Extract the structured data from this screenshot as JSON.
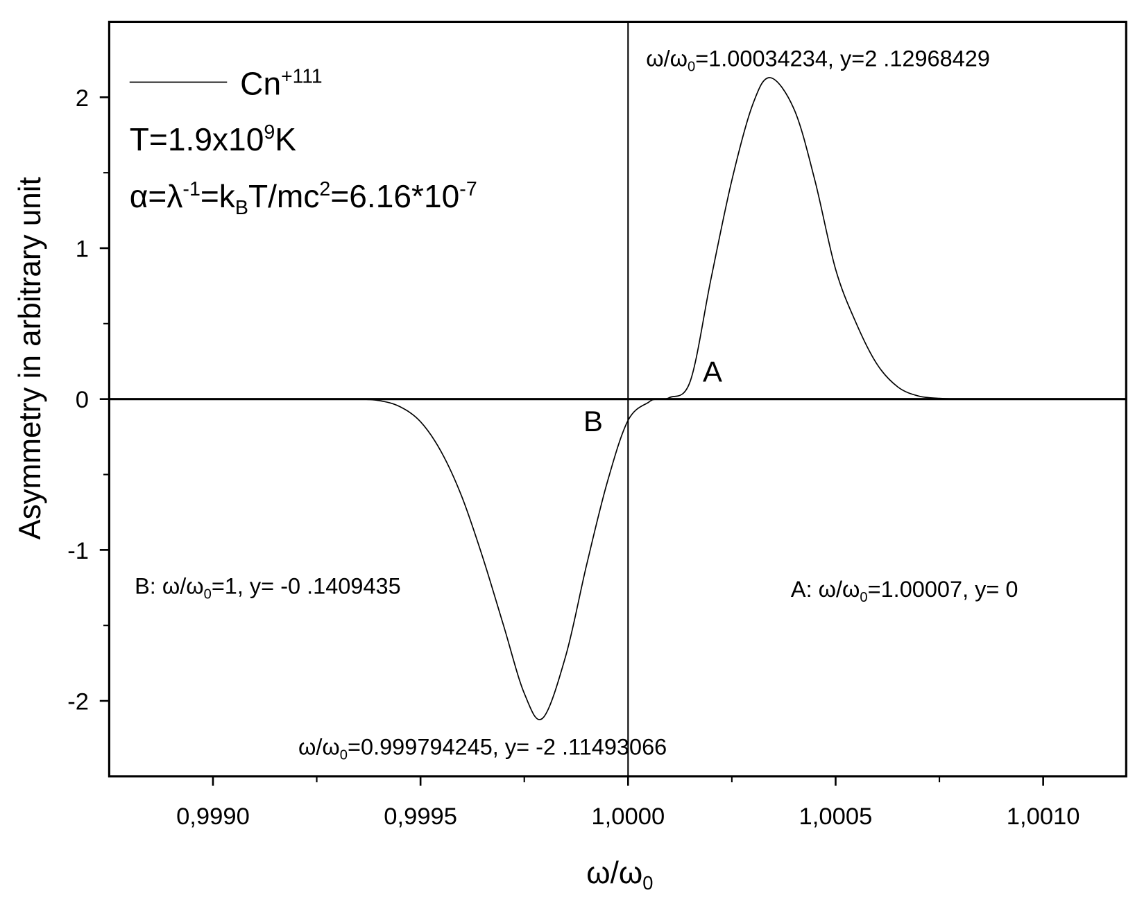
{
  "chart_data": {
    "type": "line",
    "x_label": {
      "parts": [
        {
          "text": "ω/ω"
        },
        {
          "text": "0",
          "shift": "sub"
        }
      ]
    },
    "y_label": "Asymmetry in arbitrary unit",
    "xlim": [
      0.99875,
      1.0012
    ],
    "ylim": [
      -2.5,
      2.5
    ],
    "xticks": [
      {
        "value": 0.999,
        "label": "0,9990"
      },
      {
        "value": 0.9995,
        "label": "0,9995"
      },
      {
        "value": 1,
        "label": "1,0000"
      },
      {
        "value": 1.0005,
        "label": "1,0005"
      },
      {
        "value": 1.001,
        "label": "1,0010"
      }
    ],
    "xminorticks": [
      0.99925,
      0.99975,
      1.00025,
      1.00075
    ],
    "yticks": [
      -2,
      -1,
      0,
      1,
      2
    ],
    "yminorticks": [
      -1.5,
      -0.5,
      0.5,
      1.5
    ],
    "hline": 0,
    "vline": 1,
    "x": [
      0.99935,
      0.9994,
      0.99945,
      0.9995,
      0.99955,
      0.9996,
      0.99965,
      0.9997,
      0.99975,
      0.999794245,
      0.99985,
      0.9999,
      0.99995,
      1,
      1.00005,
      1.00007,
      1.0001,
      1.00015,
      1.0002,
      1.00025,
      1.0003,
      1.00034234,
      1.0004,
      1.00045,
      1.0005,
      1.00055,
      1.0006,
      1.00065,
      1.0007,
      1.00075,
      1.0008
    ],
    "series": [
      {
        "name": "Cn",
        "name_sup": "+111",
        "color": "#000000",
        "values": [
          0,
          -0.01,
          -0.05,
          -0.15,
          -0.35,
          -0.65,
          -1.05,
          -1.5,
          -1.95,
          -2.11493066,
          -1.7,
          -1.1,
          -0.55,
          -0.1409435,
          -0.02,
          0,
          0.01,
          0.12,
          0.8,
          1.45,
          1.95,
          2.12968429,
          1.92,
          1.45,
          0.86,
          0.5,
          0.23,
          0.08,
          0.02,
          0.005,
          0
        ]
      }
    ],
    "annotations": [
      {
        "parts": [
          {
            "text": "T=1.9x10"
          },
          {
            "text": "9",
            "shift": "sup"
          },
          {
            "text": "K"
          }
        ]
      },
      {
        "parts": [
          {
            "text": "α=λ"
          },
          {
            "text": "-1",
            "shift": "sup"
          },
          {
            "text": "=k"
          },
          {
            "text": "B",
            "shift": "sub"
          },
          {
            "text": "T/mc"
          },
          {
            "text": "2",
            "shift": "sup"
          },
          {
            "text": "=6.16*10"
          },
          {
            "text": "-7",
            "shift": "sup"
          }
        ]
      },
      {
        "parts": [
          {
            "text": "ω/ω"
          },
          {
            "text": "0",
            "shift": "sub"
          },
          {
            "text": "=1.00034234, y=2 .12968429"
          }
        ]
      },
      {
        "parts": [
          {
            "text": "B: ω/ω"
          },
          {
            "text": "0",
            "shift": "sub"
          },
          {
            "text": "=1,  y= -0 .1409435"
          }
        ]
      },
      {
        "parts": [
          {
            "text": "A: ω/ω"
          },
          {
            "text": "0",
            "shift": "sub"
          },
          {
            "text": "=1.00007, y= 0"
          }
        ]
      },
      {
        "parts": [
          {
            "text": "ω/ω"
          },
          {
            "text": "0",
            "shift": "sub"
          },
          {
            "text": "=0.999794245, y= -2 .11493066"
          }
        ]
      },
      {
        "parts": [
          {
            "text": "A"
          }
        ]
      },
      {
        "parts": [
          {
            "text": "B"
          }
        ]
      }
    ]
  }
}
